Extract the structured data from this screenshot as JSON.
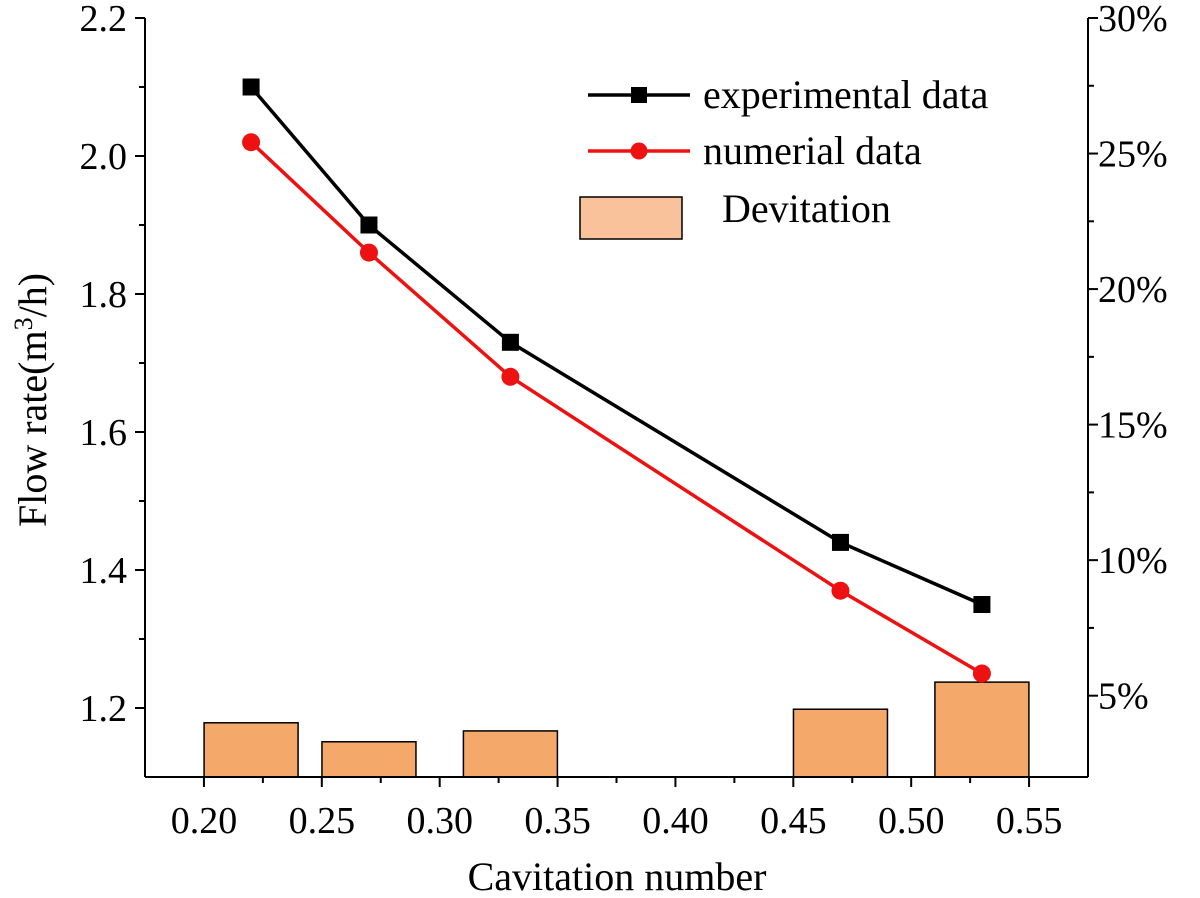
{
  "chart_data": {
    "type": "line",
    "title": "",
    "xlabel": "Cavitation number",
    "ylabel": "Flow rate(m",
    "ylabel_sup": "3",
    "ylabel_tail": "/h)",
    "xlim": [
      0.175,
      0.575
    ],
    "ylim": [
      1.1,
      2.2
    ],
    "y2lim": [
      0.02,
      0.3
    ],
    "x_ticks": [
      "0.20",
      "0.25",
      "0.30",
      "0.35",
      "0.40",
      "0.45",
      "0.50",
      "0.55"
    ],
    "x_tick_values": [
      0.2,
      0.25,
      0.3,
      0.35,
      0.4,
      0.45,
      0.5,
      0.55
    ],
    "y_ticks": [
      "1.2",
      "1.4",
      "1.6",
      "1.8",
      "2.0",
      "2.2"
    ],
    "y_tick_values": [
      1.2,
      1.4,
      1.6,
      1.8,
      2.0,
      2.2
    ],
    "y2_ticks": [
      "5%",
      "10%",
      "15%",
      "20%",
      "25%",
      "30%"
    ],
    "y2_tick_values": [
      0.05,
      0.1,
      0.15,
      0.2,
      0.25,
      0.3
    ],
    "grid": false,
    "legend_placement": "top-right",
    "series": [
      {
        "name": "experimental data",
        "kind": "line",
        "marker": "square",
        "color": "#000000",
        "x": [
          0.22,
          0.27,
          0.33,
          0.47,
          0.53
        ],
        "y": [
          2.1,
          1.9,
          1.73,
          1.44,
          1.35
        ]
      },
      {
        "name": "numerial data",
        "kind": "line",
        "marker": "circle",
        "color": "#ee1111",
        "x": [
          0.22,
          0.27,
          0.33,
          0.47,
          0.53
        ],
        "y": [
          2.02,
          1.86,
          1.68,
          1.37,
          1.25
        ]
      },
      {
        "name": "Devitation",
        "kind": "bar",
        "axis": "right",
        "color": "#f4a96b",
        "x": [
          0.22,
          0.27,
          0.33,
          0.47,
          0.53
        ],
        "y": [
          0.04,
          0.033,
          0.037,
          0.045,
          0.055
        ]
      }
    ]
  }
}
